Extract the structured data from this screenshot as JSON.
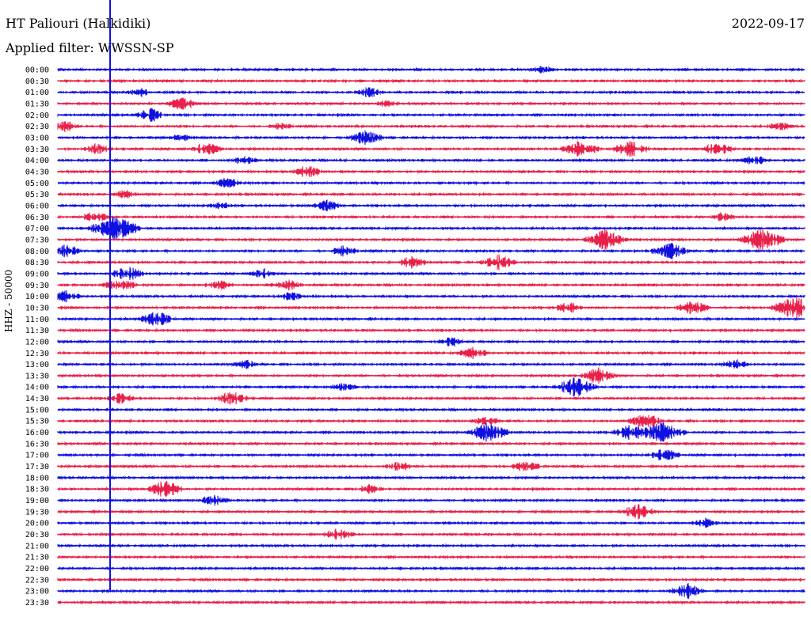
{
  "header": {
    "station": "HT Paliouri (Halkidiki)",
    "filter": "Applied filter: WWSSN-SP",
    "date": "2022-09-17"
  },
  "colors": {
    "trace_a": "#1010e0",
    "trace_b": "#e8204a",
    "marker": "#1010e0"
  },
  "chart_data": {
    "type": "line",
    "title": "HT Paliouri (Halkidiki)",
    "ylabel": "HHZ - 50000",
    "xlabel": "",
    "row_labels": [
      "00:00",
      "00:30",
      "01:00",
      "01:30",
      "02:00",
      "02:30",
      "03:00",
      "03:30",
      "04:00",
      "04:30",
      "05:00",
      "05:30",
      "06:00",
      "06:30",
      "07:00",
      "07:30",
      "08:00",
      "08:30",
      "09:00",
      "09:30",
      "10:00",
      "10:30",
      "11:00",
      "11:30",
      "12:00",
      "12:30",
      "13:00",
      "13:30",
      "14:00",
      "14:30",
      "15:00",
      "15:30",
      "16:00",
      "16:30",
      "17:00",
      "17:30",
      "18:00",
      "18:30",
      "19:00",
      "19:30",
      "20:00",
      "20:30",
      "21:00",
      "21:30",
      "22:00",
      "22:30",
      "23:00",
      "23:30"
    ],
    "series_colors": [
      "trace_a",
      "trace_b"
    ],
    "minutes_per_row": 30,
    "event_marker_minute": 2.1,
    "bursts": [
      {
        "row": 0,
        "minute": 19.5,
        "amp": 4
      },
      {
        "row": 2,
        "minute": 3.3,
        "amp": 5
      },
      {
        "row": 2,
        "minute": 12.5,
        "amp": 6
      },
      {
        "row": 3,
        "minute": 5,
        "amp": 7
      },
      {
        "row": 3,
        "minute": 13.2,
        "amp": 4
      },
      {
        "row": 4,
        "minute": 3.7,
        "amp": 8
      },
      {
        "row": 5,
        "minute": 0.3,
        "amp": 6
      },
      {
        "row": 5,
        "minute": 9,
        "amp": 4
      },
      {
        "row": 5,
        "minute": 29,
        "amp": 5
      },
      {
        "row": 6,
        "minute": 5,
        "amp": 4
      },
      {
        "row": 6,
        "minute": 12.4,
        "amp": 9
      },
      {
        "row": 7,
        "minute": 1.6,
        "amp": 6
      },
      {
        "row": 7,
        "minute": 6,
        "amp": 8
      },
      {
        "row": 7,
        "minute": 21,
        "amp": 11
      },
      {
        "row": 7,
        "minute": 23,
        "amp": 10
      },
      {
        "row": 7,
        "minute": 26.5,
        "amp": 8
      },
      {
        "row": 8,
        "minute": 7.5,
        "amp": 5
      },
      {
        "row": 8,
        "minute": 28,
        "amp": 6
      },
      {
        "row": 9,
        "minute": 10,
        "amp": 8
      },
      {
        "row": 10,
        "minute": 6.8,
        "amp": 6
      },
      {
        "row": 11,
        "minute": 2.7,
        "amp": 5
      },
      {
        "row": 12,
        "minute": 10.8,
        "amp": 7
      },
      {
        "row": 12,
        "minute": 6.5,
        "amp": 4
      },
      {
        "row": 13,
        "minute": 1.5,
        "amp": 6
      },
      {
        "row": 13,
        "minute": 26.7,
        "amp": 5
      },
      {
        "row": 14,
        "minute": 2.3,
        "amp": 16
      },
      {
        "row": 15,
        "minute": 22,
        "amp": 12
      },
      {
        "row": 15,
        "minute": 28.3,
        "amp": 14
      },
      {
        "row": 16,
        "minute": 0.3,
        "amp": 8
      },
      {
        "row": 16,
        "minute": 11.5,
        "amp": 6
      },
      {
        "row": 16,
        "minute": 24.6,
        "amp": 10
      },
      {
        "row": 17,
        "minute": 14.2,
        "amp": 7
      },
      {
        "row": 17,
        "minute": 17.7,
        "amp": 9
      },
      {
        "row": 18,
        "minute": 2.8,
        "amp": 9
      },
      {
        "row": 18,
        "minute": 8.2,
        "amp": 6
      },
      {
        "row": 19,
        "minute": 2.5,
        "amp": 8
      },
      {
        "row": 19,
        "minute": 6.5,
        "amp": 6
      },
      {
        "row": 19,
        "minute": 9.2,
        "amp": 7
      },
      {
        "row": 20,
        "minute": 0.3,
        "amp": 7
      },
      {
        "row": 20,
        "minute": 9.4,
        "amp": 5
      },
      {
        "row": 21,
        "minute": 20.5,
        "amp": 7
      },
      {
        "row": 21,
        "minute": 25.5,
        "amp": 9
      },
      {
        "row": 21,
        "minute": 29.6,
        "amp": 14
      },
      {
        "row": 22,
        "minute": 4,
        "amp": 9
      },
      {
        "row": 24,
        "minute": 15.8,
        "amp": 6
      },
      {
        "row": 25,
        "minute": 16.7,
        "amp": 7
      },
      {
        "row": 26,
        "minute": 7.5,
        "amp": 5
      },
      {
        "row": 26,
        "minute": 27.2,
        "amp": 5
      },
      {
        "row": 27,
        "minute": 21.7,
        "amp": 10
      },
      {
        "row": 28,
        "minute": 11.5,
        "amp": 5
      },
      {
        "row": 28,
        "minute": 20.8,
        "amp": 12
      },
      {
        "row": 29,
        "minute": 2.5,
        "amp": 6
      },
      {
        "row": 29,
        "minute": 7,
        "amp": 8
      },
      {
        "row": 31,
        "minute": 17.2,
        "amp": 6
      },
      {
        "row": 31,
        "minute": 23.6,
        "amp": 9
      },
      {
        "row": 32,
        "minute": 17.3,
        "amp": 12
      },
      {
        "row": 32,
        "minute": 23,
        "amp": 10
      },
      {
        "row": 32,
        "minute": 24.3,
        "amp": 14
      },
      {
        "row": 34,
        "minute": 24.4,
        "amp": 8
      },
      {
        "row": 35,
        "minute": 13.7,
        "amp": 6
      },
      {
        "row": 35,
        "minute": 18.8,
        "amp": 7
      },
      {
        "row": 37,
        "minute": 4.3,
        "amp": 11
      },
      {
        "row": 37,
        "minute": 12.5,
        "amp": 5
      },
      {
        "row": 38,
        "minute": 6.3,
        "amp": 7
      },
      {
        "row": 39,
        "minute": 23.3,
        "amp": 9
      },
      {
        "row": 40,
        "minute": 26,
        "amp": 5
      },
      {
        "row": 41,
        "minute": 11.3,
        "amp": 7
      },
      {
        "row": 46,
        "minute": 25.3,
        "amp": 9
      }
    ]
  }
}
